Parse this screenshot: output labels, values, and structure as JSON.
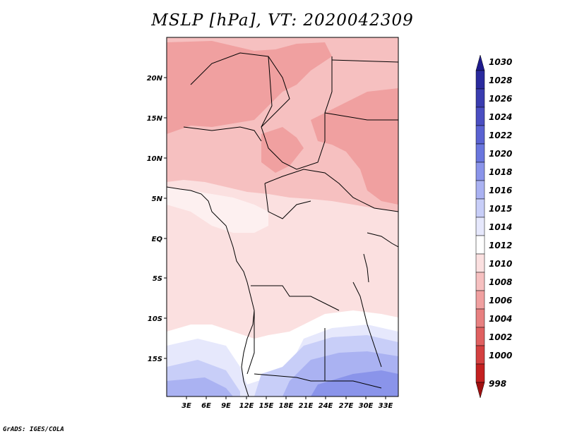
{
  "title": "MSLP [hPa], VT: 2020042309",
  "credit": "GrADS: IGES/COLA",
  "lat_labels": [
    "20N",
    "15N",
    "10N",
    "5N",
    "EQ",
    "5S",
    "10S",
    "15S"
  ],
  "lon_labels": [
    "3E",
    "6E",
    "9E",
    "12E",
    "15E",
    "18E",
    "21E",
    "24E",
    "27E",
    "30E",
    "33E"
  ],
  "colorbar": {
    "labels": [
      "1030",
      "1028",
      "1026",
      "1024",
      "1022",
      "1020",
      "1018",
      "1016",
      "1015",
      "1014",
      "1012",
      "1010",
      "1008",
      "1006",
      "1004",
      "1002",
      "1000",
      "998"
    ],
    "colors": [
      "#1e1a8c",
      "#2a2a9e",
      "#3a3cb0",
      "#4a4ec2",
      "#5a62d2",
      "#6a76de",
      "#8a94ea",
      "#aab2f2",
      "#c8ceF8",
      "#e6e8fc",
      "#ffffff",
      "#fbe0e0",
      "#f6c0c0",
      "#f0a0a0",
      "#e88080",
      "#e06060",
      "#d44040",
      "#c42020",
      "#a01010"
    ]
  },
  "legend_colors": {
    "high": "#1e1a8c",
    "neutral": "#ffffff",
    "low": "#a01010"
  }
}
